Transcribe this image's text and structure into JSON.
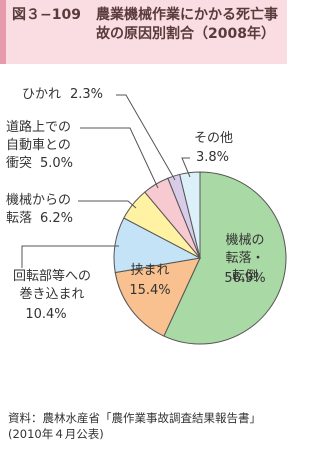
{
  "header": {
    "figure": "図３−109",
    "title": "農業機械作業にかかる死亡事故の原因別割合（2008年）"
  },
  "chart_data": {
    "type": "pie",
    "categories": [
      "機械の\n転落・転倒",
      "挟まれ",
      "回転部等への\n巻き込まれ",
      "機械からの\n転落",
      "道路上での\n自動車との\n衝突",
      "ひかれ",
      "その他"
    ],
    "values": [
      56.9,
      15.4,
      10.4,
      6.2,
      5.0,
      2.3,
      3.8
    ],
    "value_labels": [
      "56.9%",
      "15.4%",
      "10.4%",
      "6.2%",
      "5.0%",
      "2.3%",
      "3.8%"
    ],
    "colors": [
      "#a9d9a4",
      "#f8c18f",
      "#c4e3f6",
      "#fff3a3",
      "#f7c9d1",
      "#d8cce8",
      "#dcf0f9"
    ]
  },
  "source": "資料：農林水産省「農作業事故調査結果報告書」(2010年４月公表)"
}
